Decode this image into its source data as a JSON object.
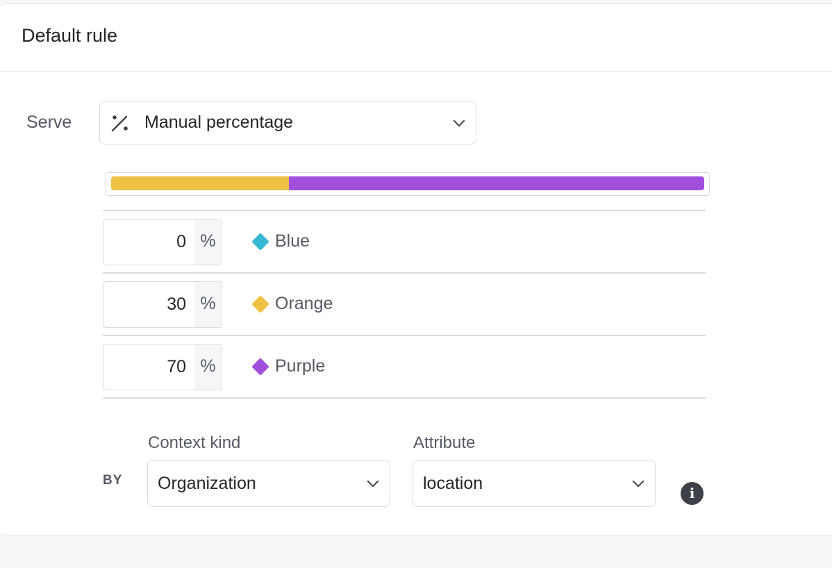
{
  "header": {
    "title": "Default rule"
  },
  "serve": {
    "label": "Serve",
    "icon": "percent-icon",
    "selected": "Manual percentage"
  },
  "rollout": {
    "variations": [
      {
        "name": "Blue",
        "percent": "0",
        "color": "#36b8d0"
      },
      {
        "name": "Orange",
        "percent": "30",
        "color": "#eec142"
      },
      {
        "name": "Purple",
        "percent": "70",
        "color": "#a050dc"
      }
    ],
    "unit": "%"
  },
  "bucket": {
    "by_label": "BY",
    "context_kind_label": "Context kind",
    "context_kind_value": "Organization",
    "attribute_label": "Attribute",
    "attribute_value": "location",
    "info_icon": "info-icon"
  }
}
